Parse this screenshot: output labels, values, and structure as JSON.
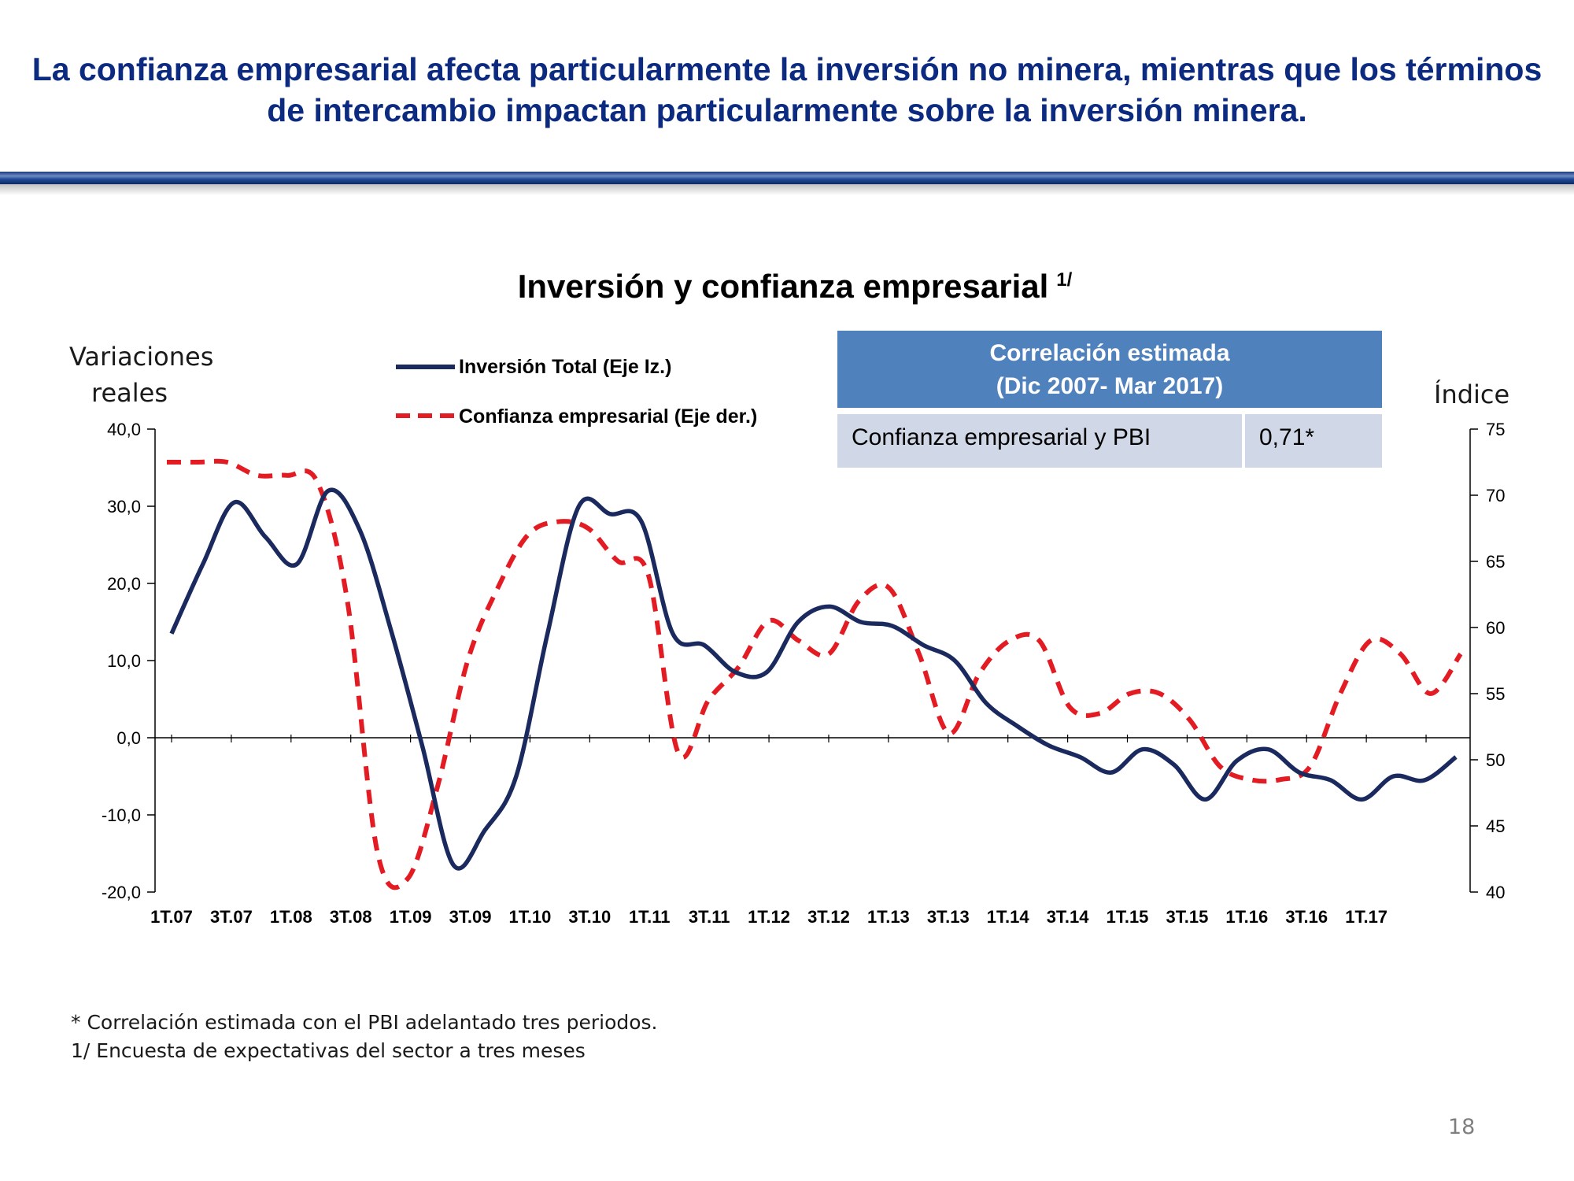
{
  "headline": "La confianza empresarial afecta particularmente la inversión no minera, mientras que los términos de intercambio impactan particularmente sobre la inversión minera.",
  "footnotes": [
    "* Correlación estimada con el PBI adelantado tres periodos.",
    "1/ Encuesta de expectativas del sector a tres meses"
  ],
  "page_number": "18",
  "correlation_box": {
    "header_line1": "Correlación estimada",
    "header_line2": "(Dic 2007- Mar 2017)",
    "row_label": "Confianza empresarial y PBI",
    "row_value": "0,71*"
  },
  "colors": {
    "headline": "#0b2a80",
    "investment_line": "#1b2a5e",
    "confidence_line": "#e31b23",
    "table_header": "#4f81bd",
    "table_cell": "#d0d8e8"
  },
  "chart_data": {
    "type": "line",
    "title": "Inversión y confianza empresarial",
    "title_superscript": "1/",
    "ylabel_left_line1": "Variaciones",
    "ylabel_left_line2": "reales",
    "ylabel_right": "Índice",
    "ylim_left": [
      -20,
      40
    ],
    "ylim_right": [
      40,
      75
    ],
    "yticks_left": [
      "-20,0",
      "-10,0",
      "0,0",
      "10,0",
      "20,0",
      "30,0",
      "40,0"
    ],
    "yticks_left_values": [
      -20,
      -10,
      0,
      10,
      20,
      30,
      40
    ],
    "yticks_right": [
      "40",
      "45",
      "50",
      "55",
      "60",
      "65",
      "70",
      "75"
    ],
    "yticks_right_values": [
      40,
      45,
      50,
      55,
      60,
      65,
      70,
      75
    ],
    "x_tick_labels": [
      "1T.07",
      "3T.07",
      "1T.08",
      "3T.08",
      "1T.09",
      "3T.09",
      "1T.10",
      "3T.10",
      "1T.11",
      "3T.11",
      "1T.12",
      "3T.12",
      "1T.13",
      "3T.13",
      "1T.14",
      "3T.14",
      "1T.15",
      "3T.15",
      "1T.16",
      "3T.16",
      "1T.17"
    ],
    "legend_position": "top-left",
    "grid": false,
    "series": [
      {
        "name": "Inversión Total (Eje Iz.)",
        "axis": "left",
        "style": "solid",
        "values": [
          13.5,
          22.5,
          30.5,
          26,
          22.5,
          32,
          27,
          14,
          -1,
          -16.5,
          -12,
          -5,
          13.5,
          30,
          29,
          28,
          13.5,
          12,
          8.5,
          8.5,
          15,
          17,
          15,
          14.5,
          12,
          10,
          4.5,
          1.5,
          -1,
          -2.5,
          -4.5,
          -1.5,
          -3.5,
          -8,
          -3,
          -1.5,
          -4.5,
          -5.5,
          -8,
          -5,
          -5.5,
          -2.5
        ]
      },
      {
        "name": "Confianza empresarial (Eje der.)",
        "axis": "right",
        "style": "dashed",
        "values": [
          72.5,
          72.5,
          72.5,
          71.5,
          71.5,
          71,
          62,
          43,
          41,
          48,
          57.5,
          63,
          67,
          68,
          67.5,
          65,
          64,
          50.5,
          54.5,
          57,
          60.5,
          59,
          58,
          62,
          63,
          58,
          52,
          56.5,
          59,
          59,
          54,
          53.5,
          55,
          55,
          53,
          49.5,
          48.5,
          48.5,
          49.5,
          55,
          59,
          58,
          55,
          58
        ]
      }
    ]
  }
}
